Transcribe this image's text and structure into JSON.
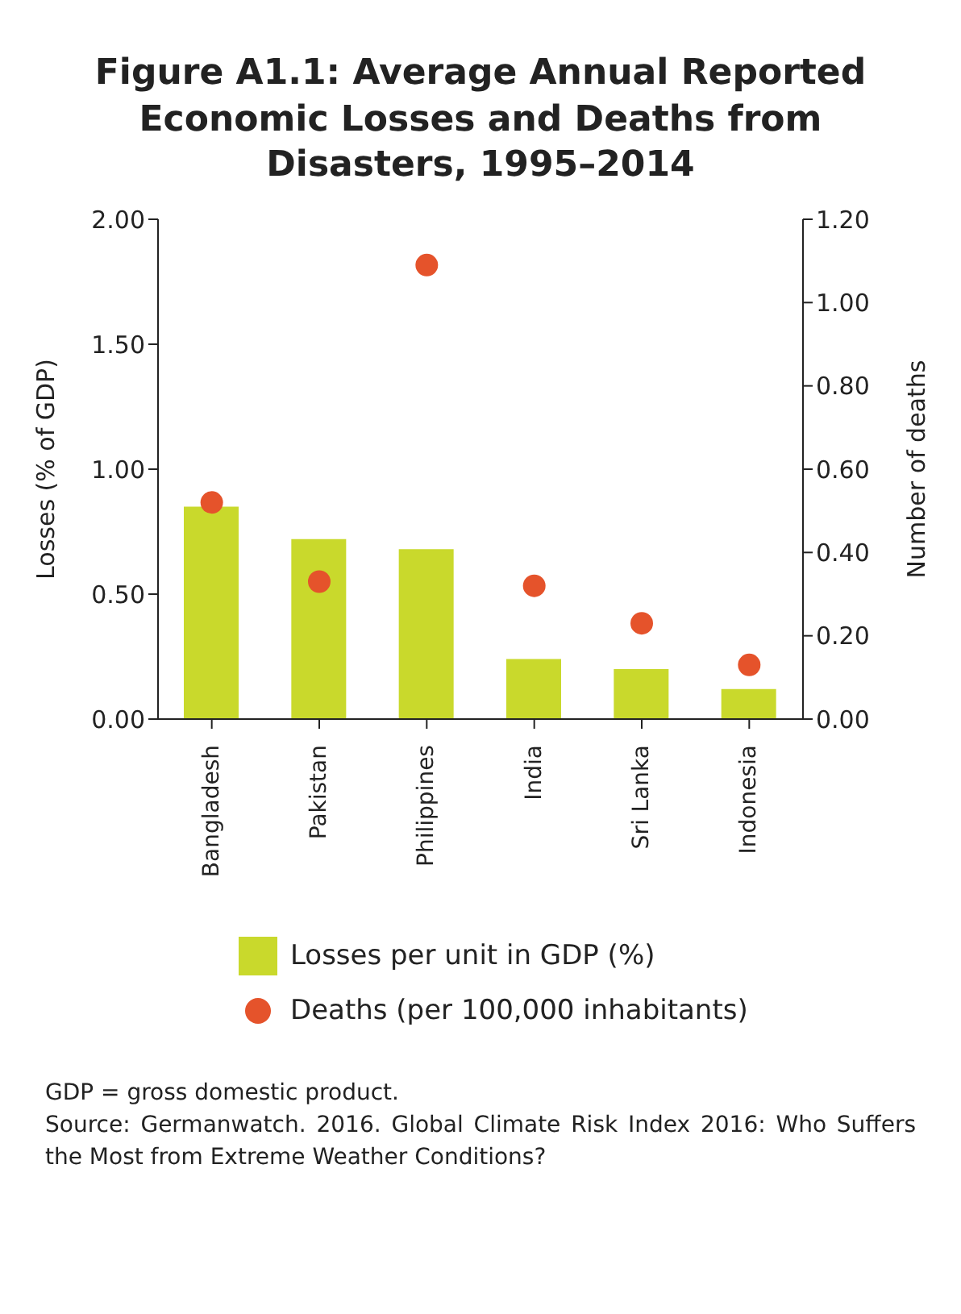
{
  "chart_data": {
    "type": "bar",
    "title": "Figure A1.1: Average Annual Reported Economic Losses and Deaths from Disasters, 1995–2014",
    "ylabel": "Losses (% of GDP)",
    "y2label": "Number of deaths",
    "categories": [
      "Bangladesh",
      "Pakistan",
      "Philippines",
      "India",
      "Sri Lanka",
      "Indonesia"
    ],
    "series": [
      {
        "name": "Losses per unit in GDP (%)",
        "color": "#c9d92c",
        "values": [
          0.85,
          0.72,
          0.68,
          0.24,
          0.2,
          0.12
        ]
      },
      {
        "name": "Deaths (per 100,000 inhabitants)",
        "type": "scatter",
        "axis": "y2",
        "color": "#e5532b",
        "values": [
          0.52,
          0.33,
          1.09,
          0.32,
          0.23,
          0.13
        ]
      }
    ],
    "ylim": [
      0,
      2
    ],
    "yticks": [
      {
        "value": 0,
        "label": "0.00"
      },
      {
        "value": 0.5,
        "label": "0.50"
      },
      {
        "value": 1,
        "label": "1.00"
      },
      {
        "value": 1.5,
        "label": "1.50"
      },
      {
        "value": 2,
        "label": "2.00"
      }
    ],
    "y2lim": [
      0,
      1.2
    ],
    "y2ticks": [
      {
        "value": 0,
        "label": "0.00"
      },
      {
        "value": 0.2,
        "label": "0.20"
      },
      {
        "value": 0.4,
        "label": "0.40"
      },
      {
        "value": 0.6,
        "label": "0.60"
      },
      {
        "value": 0.8,
        "label": "0.80"
      },
      {
        "value": 1,
        "label": "1.00"
      },
      {
        "value": 1.2,
        "label": "1.20"
      }
    ],
    "grid": false,
    "legend": "bottom",
    "marker": "circle",
    "annotations": [
      "GDP = gross domestic product.",
      "Source: Germanwatch. 2016. Global Climate Risk Index 2016: Who Suffers the Most from Extreme Weather Conditions?"
    ]
  }
}
